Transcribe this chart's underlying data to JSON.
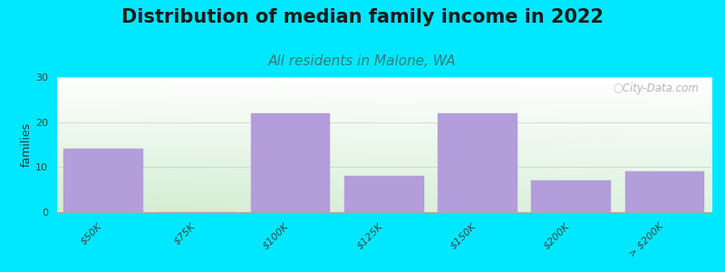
{
  "title": "Distribution of median family income in 2022",
  "subtitle": "All residents in Malone, WA",
  "categories": [
    "$50K",
    "$75K",
    "$100K",
    "$125K",
    "$150K",
    "$200K",
    "> $200K"
  ],
  "values": [
    14,
    0,
    22,
    8,
    22,
    7,
    9
  ],
  "bar_color": "#b39ddb",
  "bar_edge_color": "#b39ddb",
  "ylabel": "families",
  "ylim": [
    0,
    30
  ],
  "yticks": [
    0,
    10,
    20,
    30
  ],
  "background_outer": "#00e8ff",
  "plot_bg_top_left": "#c8e6c9",
  "plot_bg_top_right": "#f0f8ff",
  "plot_bg_bottom": "#e8f5e9",
  "title_fontsize": 15,
  "subtitle_fontsize": 11,
  "title_color": "#1a1a1a",
  "subtitle_color": "#3a7a7a",
  "watermark": " City-Data.com"
}
